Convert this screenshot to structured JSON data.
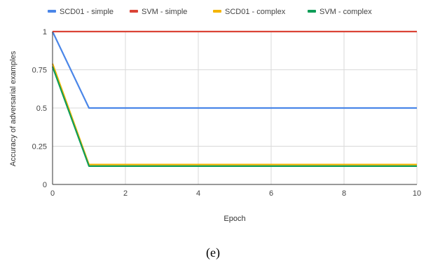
{
  "chart_data": {
    "type": "line",
    "xlabel": "Epoch",
    "ylabel": "Accuracy of adversarial examples",
    "xlim": [
      0,
      10
    ],
    "ylim": [
      0,
      1
    ],
    "x_ticks": [
      0,
      2,
      4,
      6,
      8,
      10
    ],
    "y_ticks": [
      "0",
      "0.25",
      "0.5",
      "0.75",
      "1"
    ],
    "grid": true,
    "legend_position": "top",
    "x": [
      0,
      1,
      2,
      3,
      4,
      5,
      6,
      7,
      8,
      9,
      10
    ],
    "series": [
      {
        "name": "SCD01 - simple",
        "color": "#4a86e8",
        "values": [
          1.0,
          0.5,
          0.5,
          0.5,
          0.5,
          0.5,
          0.5,
          0.5,
          0.5,
          0.5,
          0.5
        ]
      },
      {
        "name": "SVM - simple",
        "color": "#db4437",
        "values": [
          1.0,
          1.0,
          1.0,
          1.0,
          1.0,
          1.0,
          1.0,
          1.0,
          1.0,
          1.0,
          1.0
        ]
      },
      {
        "name": "SCD01 - complex",
        "color": "#f4b400",
        "values": [
          0.79,
          0.13,
          0.13,
          0.13,
          0.13,
          0.13,
          0.13,
          0.13,
          0.13,
          0.13,
          0.13
        ]
      },
      {
        "name": "SVM - complex",
        "color": "#0f9d58",
        "values": [
          0.77,
          0.12,
          0.12,
          0.12,
          0.12,
          0.12,
          0.12,
          0.12,
          0.12,
          0.12,
          0.12
        ]
      }
    ]
  },
  "caption": "(e)"
}
